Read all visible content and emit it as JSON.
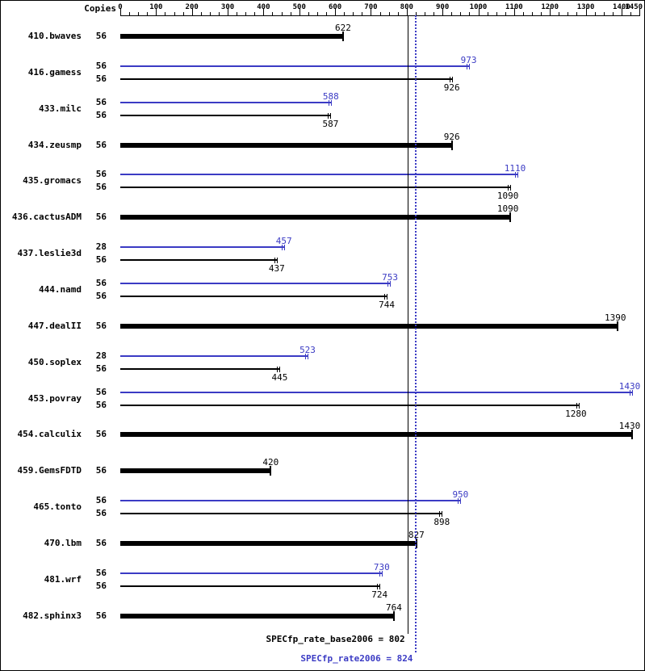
{
  "header": {
    "copies_label": "Copies"
  },
  "chart_data": {
    "type": "bar",
    "orientation": "horizontal",
    "title": "",
    "xlabel": "",
    "ylabel": "",
    "x_axis": {
      "min": 0,
      "max": 1450,
      "major_ticks": [
        0,
        100,
        200,
        300,
        400,
        500,
        600,
        700,
        800,
        900,
        1000,
        1100,
        1200,
        1300,
        1400,
        1450
      ],
      "minor_step": 25
    },
    "colors": {
      "peak": "#3b3bc4",
      "base": "#000000"
    },
    "legend": {
      "peak_series": "SPECfp_rate2006 (peak)",
      "base_series": "SPECfp_rate_base2006 (base)"
    },
    "benchmarks": [
      {
        "name": "410.bwaves",
        "bars": [
          {
            "type": "single",
            "copies": "56",
            "value": 622
          }
        ]
      },
      {
        "name": "416.gamess",
        "bars": [
          {
            "type": "peak",
            "copies": "56",
            "value": 973
          },
          {
            "type": "base",
            "copies": "56",
            "value": 926
          }
        ]
      },
      {
        "name": "433.milc",
        "bars": [
          {
            "type": "peak",
            "copies": "56",
            "value": 588
          },
          {
            "type": "base",
            "copies": "56",
            "value": 587
          }
        ]
      },
      {
        "name": "434.zeusmp",
        "bars": [
          {
            "type": "single",
            "copies": "56",
            "value": 926
          }
        ]
      },
      {
        "name": "435.gromacs",
        "bars": [
          {
            "type": "peak",
            "copies": "56",
            "value": 1110
          },
          {
            "type": "base",
            "copies": "56",
            "value": 1090
          }
        ]
      },
      {
        "name": "436.cactusADM",
        "bars": [
          {
            "type": "single",
            "copies": "56",
            "value": 1090
          }
        ]
      },
      {
        "name": "437.leslie3d",
        "bars": [
          {
            "type": "peak",
            "copies": "28",
            "value": 457
          },
          {
            "type": "base",
            "copies": "56",
            "value": 437
          }
        ]
      },
      {
        "name": "444.namd",
        "bars": [
          {
            "type": "peak",
            "copies": "56",
            "value": 753
          },
          {
            "type": "base",
            "copies": "56",
            "value": 744
          }
        ]
      },
      {
        "name": "447.dealII",
        "bars": [
          {
            "type": "single",
            "copies": "56",
            "value": 1390
          }
        ]
      },
      {
        "name": "450.soplex",
        "bars": [
          {
            "type": "peak",
            "copies": "28",
            "value": 523
          },
          {
            "type": "base",
            "copies": "56",
            "value": 445
          }
        ]
      },
      {
        "name": "453.povray",
        "bars": [
          {
            "type": "peak",
            "copies": "56",
            "value": 1430
          },
          {
            "type": "base",
            "copies": "56",
            "value": 1280
          }
        ]
      },
      {
        "name": "454.calculix",
        "bars": [
          {
            "type": "single",
            "copies": "56",
            "value": 1430
          }
        ]
      },
      {
        "name": "459.GemsFDTD",
        "bars": [
          {
            "type": "single",
            "copies": "56",
            "value": 420
          }
        ]
      },
      {
        "name": "465.tonto",
        "bars": [
          {
            "type": "peak",
            "copies": "56",
            "value": 950
          },
          {
            "type": "base",
            "copies": "56",
            "value": 898
          }
        ]
      },
      {
        "name": "470.lbm",
        "bars": [
          {
            "type": "single",
            "copies": "56",
            "value": 827
          }
        ]
      },
      {
        "name": "481.wrf",
        "bars": [
          {
            "type": "peak",
            "copies": "56",
            "value": 730
          },
          {
            "type": "base",
            "copies": "56",
            "value": 724
          }
        ]
      },
      {
        "name": "482.sphinx3",
        "bars": [
          {
            "type": "single",
            "copies": "56",
            "value": 764
          }
        ]
      }
    ],
    "reference_lines": [
      {
        "label": "SPECfp_rate_base2006 = 802",
        "value": 802,
        "style": "solid",
        "color": "#000000"
      },
      {
        "label": "SPECfp_rate2006 = 824",
        "value": 824,
        "style": "dotted",
        "color": "#3b3bc4"
      }
    ]
  }
}
